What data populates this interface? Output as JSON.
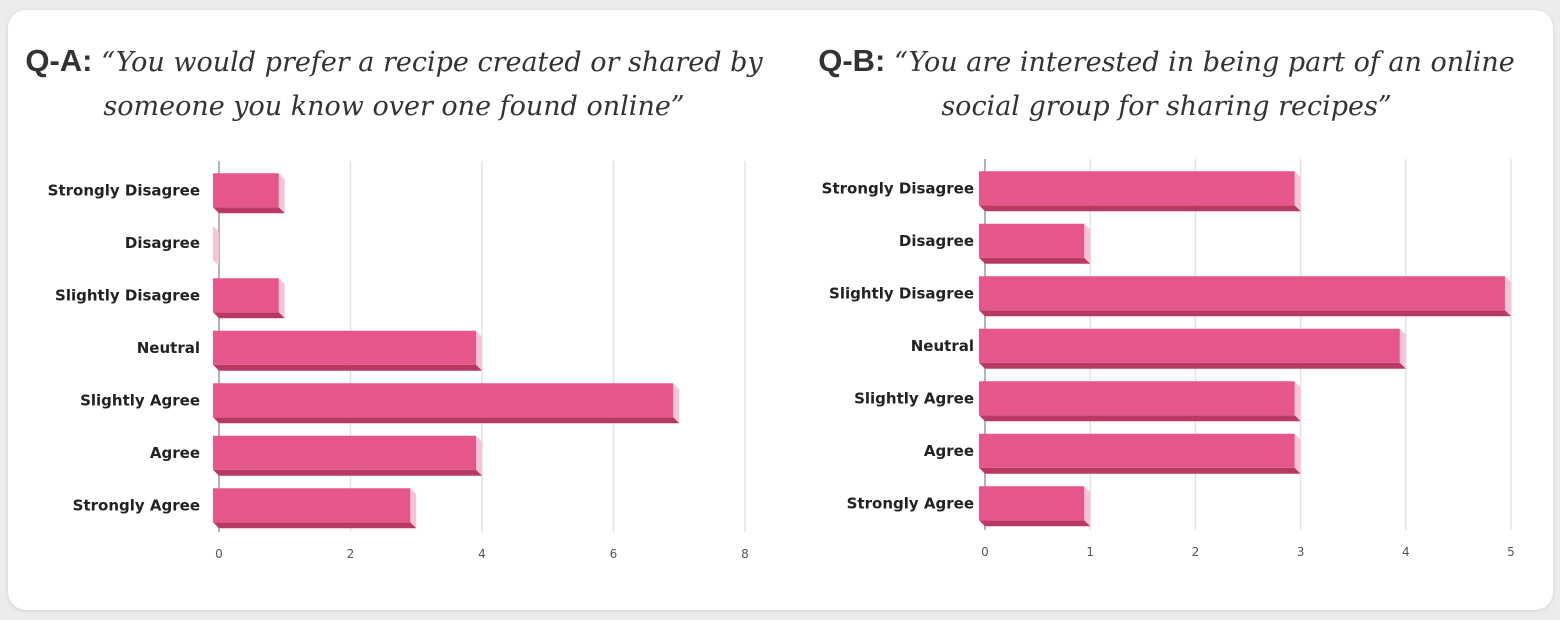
{
  "colors": {
    "bar_face": "#e5578a",
    "bar_bottom": "#b83a62",
    "bar_side": "#f8c3d6",
    "grid": "#e3e3e3",
    "axis": "#9a9a9a"
  },
  "chart_data": [
    {
      "type": "bar",
      "orientation": "horizontal",
      "title_label": "Q-A:",
      "title": "“You would prefer a recipe created or shared by someone you know over one found online”",
      "categories": [
        "Strongly Disagree",
        "Disagree",
        "Slightly Disagree",
        "Neutral",
        "Slightly Agree",
        "Agree",
        "Strongly Agree"
      ],
      "values": [
        1,
        0,
        1,
        4,
        7,
        4,
        3
      ],
      "xlim": [
        0,
        8
      ],
      "xticks": [
        0,
        2,
        4,
        6,
        8
      ],
      "grid": true
    },
    {
      "type": "bar",
      "orientation": "horizontal",
      "title_label": "Q-B:",
      "title": "“You are interested in being part of an online social group for sharing recipes”",
      "categories": [
        "Strongly Disagree",
        "Disagree",
        "Slightly Disagree",
        "Neutral",
        "Slightly Agree",
        "Agree",
        "Strongly Agree"
      ],
      "values": [
        3,
        1,
        5,
        4,
        3,
        3,
        1
      ],
      "xlim": [
        0,
        5
      ],
      "xticks": [
        0,
        1,
        2,
        3,
        4,
        5
      ],
      "grid": true
    }
  ]
}
